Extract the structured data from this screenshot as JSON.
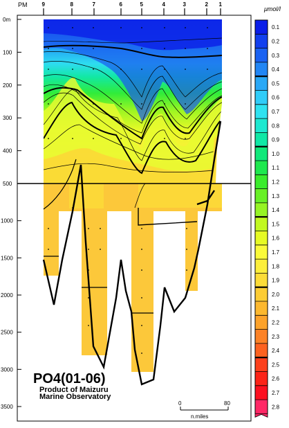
{
  "chart_data": {
    "type": "heatmap",
    "title": "PO4(01-06)",
    "subtitle_lines": [
      "Product of Maizuru",
      "Marine Observatory"
    ],
    "top_axis": {
      "label": "PM",
      "stations": [
        "9",
        "8",
        "7",
        "6",
        "5",
        "4",
        "3",
        "2",
        "1"
      ]
    },
    "depth_axis": {
      "upper_ticks": [
        "0m",
        "100",
        "200",
        "300",
        "400",
        "500"
      ],
      "upper_values": [
        0,
        100,
        200,
        300,
        400,
        500
      ],
      "lower_ticks": [
        "1000",
        "1500",
        "2000",
        "2500",
        "3000",
        "3500"
      ],
      "lower_values": [
        1000,
        1500,
        2000,
        2500,
        3000,
        3500
      ]
    },
    "colorbar": {
      "unit": "μmol/l",
      "levels": [
        "0.1",
        "0.2",
        "0.3",
        "0.4",
        "0.5",
        "0.6",
        "0.7",
        "0.8",
        "0.9",
        "1.0",
        "1.1",
        "1.2",
        "1.3",
        "1.4",
        "1.5",
        "1.6",
        "1.7",
        "1.8",
        "1.9",
        "2.0",
        "2.1",
        "2.2",
        "2.3",
        "2.4",
        "2.5",
        "2.6",
        "2.7",
        "2.8"
      ],
      "colors": [
        "#0a1ee8",
        "#1240ee",
        "#1a62f2",
        "#2286f4",
        "#2aa8f6",
        "#30ccf8",
        "#2ee2f0",
        "#1ee8d0",
        "#10e8a6",
        "#10e87a",
        "#1ee84e",
        "#3aec2c",
        "#68f026",
        "#96f424",
        "#c2f820",
        "#e6fa24",
        "#fafa3a",
        "#fcee3c",
        "#fcdc38",
        "#fccc34",
        "#fcb82e",
        "#fca22a",
        "#fc8226",
        "#fc6220",
        "#fc401c",
        "#fc2418",
        "#fc1020",
        "#ff2866"
      ],
      "bold_levels": [
        "0.5",
        "1.0",
        "1.5",
        "2.0",
        "2.5"
      ]
    },
    "scale_bar": {
      "start": "0",
      "end": "80",
      "unit": "n.miles"
    }
  }
}
